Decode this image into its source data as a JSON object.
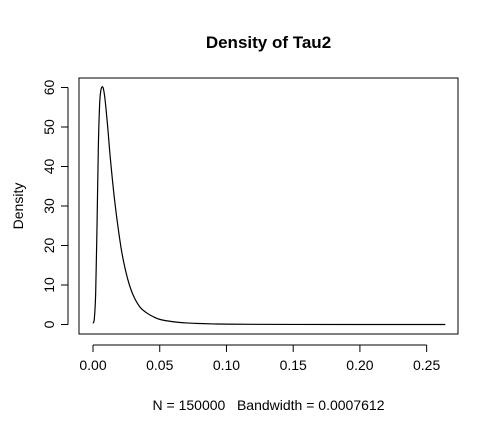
{
  "chart_data": {
    "type": "line",
    "title": "Density of Tau2",
    "xlabel": "N = 150000   Bandwidth = 0.0007612",
    "ylabel": "Density",
    "xlim": [
      -0.0105,
      0.2735
    ],
    "ylim": [
      -2.4,
      62.4
    ],
    "x_ticks": [
      0.0,
      0.05,
      0.1,
      0.15,
      0.2,
      0.25
    ],
    "x_tick_labels": [
      "0.00",
      "0.05",
      "0.10",
      "0.15",
      "0.20",
      "0.25"
    ],
    "y_ticks": [
      0,
      10,
      20,
      30,
      40,
      50,
      60
    ],
    "y_tick_labels": [
      "0",
      "10",
      "20",
      "30",
      "40",
      "50",
      "60"
    ],
    "grid": false,
    "series": [
      {
        "name": "density",
        "x": [
          0.0,
          0.001,
          0.002,
          0.003,
          0.004,
          0.005,
          0.006,
          0.0075,
          0.009,
          0.011,
          0.013,
          0.016,
          0.019,
          0.022,
          0.026,
          0.03,
          0.035,
          0.04,
          0.045,
          0.05,
          0.06,
          0.07,
          0.08,
          0.09,
          0.1,
          0.12,
          0.15,
          0.2,
          0.264
        ],
        "y": [
          0.3,
          1.5,
          8.0,
          25.0,
          45.0,
          56.0,
          59.5,
          60.0,
          57.0,
          50.0,
          42.0,
          32.0,
          24.0,
          17.5,
          11.5,
          7.5,
          4.5,
          3.0,
          2.0,
          1.3,
          0.7,
          0.4,
          0.25,
          0.15,
          0.1,
          0.05,
          0.02,
          0.01,
          0.0
        ]
      }
    ]
  }
}
